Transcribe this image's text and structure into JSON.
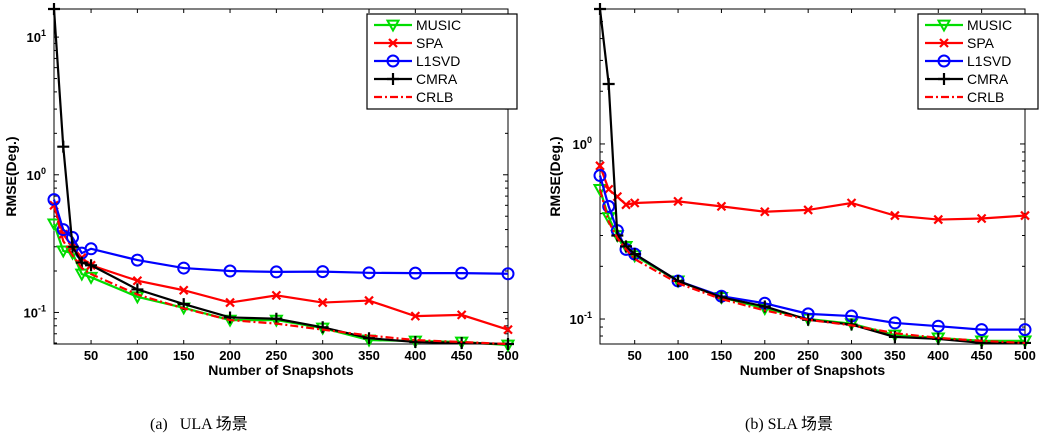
{
  "chart_data": [
    {
      "type": "line",
      "id": "a",
      "title": "",
      "xlabel": "Number of Snapshots",
      "ylabel": "RMSE(Deg.)",
      "yscale": "log",
      "xlim": [
        10,
        500
      ],
      "ylim": [
        0.059,
        16
      ],
      "xticks": [
        50,
        100,
        150,
        200,
        250,
        300,
        350,
        400,
        450,
        500
      ],
      "yticks": [
        {
          "value": 0.1,
          "label": "10",
          "exp": "-1"
        },
        {
          "value": 1,
          "label": "10",
          "exp": "0"
        },
        {
          "value": 10,
          "label": "10",
          "exp": "1"
        }
      ],
      "legend_position": "top-right",
      "x": [
        10,
        20,
        30,
        40,
        50,
        100,
        150,
        200,
        250,
        300,
        350,
        400,
        450,
        500
      ],
      "series": [
        {
          "name": "MUSIC",
          "color": "#00dd00",
          "marker": "triangle-down",
          "dash": "solid",
          "values": [
            0.44,
            0.28,
            0.27,
            0.19,
            0.18,
            0.13,
            0.108,
            0.088,
            0.088,
            0.077,
            0.063,
            0.062,
            0.061,
            0.058
          ]
        },
        {
          "name": "SPA",
          "color": "#ff0000",
          "marker": "x",
          "dash": "solid",
          "values": [
            0.6,
            0.37,
            0.3,
            0.25,
            0.22,
            0.17,
            0.145,
            0.118,
            0.133,
            0.118,
            0.122,
            0.094,
            0.096,
            0.075
          ]
        },
        {
          "name": "L1SVD",
          "color": "#0000ff",
          "marker": "circle",
          "dash": "solid",
          "values": [
            0.66,
            0.4,
            0.35,
            0.27,
            0.29,
            0.24,
            0.21,
            0.2,
            0.197,
            0.198,
            0.194,
            0.193,
            0.193,
            0.191
          ]
        },
        {
          "name": "CMRA",
          "color": "#000000",
          "marker": "plus",
          "dash": "solid",
          "values": [
            16,
            1.6,
            0.3,
            0.23,
            0.22,
            0.147,
            0.115,
            0.092,
            0.09,
            0.078,
            0.065,
            0.061,
            0.06,
            0.059
          ]
        },
        {
          "name": "CRLB",
          "color": "#ff0000",
          "marker": "none",
          "dash": "dashdot",
          "values": [
            0.6,
            0.33,
            0.26,
            0.21,
            0.19,
            0.135,
            0.107,
            0.088,
            0.083,
            0.075,
            0.068,
            0.063,
            0.061,
            0.059
          ]
        }
      ]
    },
    {
      "type": "line",
      "id": "b",
      "title": "",
      "xlabel": "Number of Snapshots",
      "ylabel": "RMSE(Deg.)",
      "yscale": "log",
      "xlim": [
        10,
        500
      ],
      "ylim": [
        0.072,
        5.9
      ],
      "xticks": [
        50,
        100,
        150,
        200,
        250,
        300,
        350,
        400,
        450,
        500
      ],
      "yticks": [
        {
          "value": 0.1,
          "label": "10",
          "exp": "-1"
        },
        {
          "value": 1,
          "label": "10",
          "exp": "0"
        }
      ],
      "legend_position": "top-right",
      "x": [
        10,
        20,
        30,
        40,
        50,
        100,
        150,
        200,
        250,
        300,
        350,
        400,
        450,
        500
      ],
      "series": [
        {
          "name": "MUSIC",
          "color": "#00dd00",
          "marker": "triangle-down",
          "dash": "solid",
          "values": [
            0.55,
            0.38,
            0.3,
            0.26,
            0.23,
            0.165,
            0.133,
            0.115,
            0.1,
            0.094,
            0.081,
            0.078,
            0.075,
            0.075
          ]
        },
        {
          "name": "SPA",
          "color": "#ff0000",
          "marker": "x",
          "dash": "solid",
          "values": [
            0.75,
            0.55,
            0.5,
            0.45,
            0.46,
            0.47,
            0.44,
            0.41,
            0.42,
            0.46,
            0.39,
            0.37,
            0.375,
            0.39
          ]
        },
        {
          "name": "L1SVD",
          "color": "#0000ff",
          "marker": "circle",
          "dash": "solid",
          "values": [
            0.66,
            0.44,
            0.32,
            0.25,
            0.235,
            0.165,
            0.135,
            0.123,
            0.107,
            0.104,
            0.095,
            0.091,
            0.087,
            0.087
          ]
        },
        {
          "name": "CMRA",
          "color": "#000000",
          "marker": "plus",
          "dash": "solid",
          "values": [
            5.9,
            2.2,
            0.3,
            0.26,
            0.235,
            0.165,
            0.133,
            0.118,
            0.099,
            0.093,
            0.079,
            0.077,
            0.073,
            0.073
          ]
        },
        {
          "name": "CRLB",
          "color": "#ff0000",
          "marker": "none",
          "dash": "dashdot",
          "values": [
            0.55,
            0.36,
            0.29,
            0.25,
            0.22,
            0.16,
            0.13,
            0.112,
            0.099,
            0.092,
            0.083,
            0.078,
            0.075,
            0.073
          ]
        }
      ]
    }
  ],
  "captions": {
    "a": "(a)   ULA 场景",
    "b": "(b) SLA 场景"
  }
}
